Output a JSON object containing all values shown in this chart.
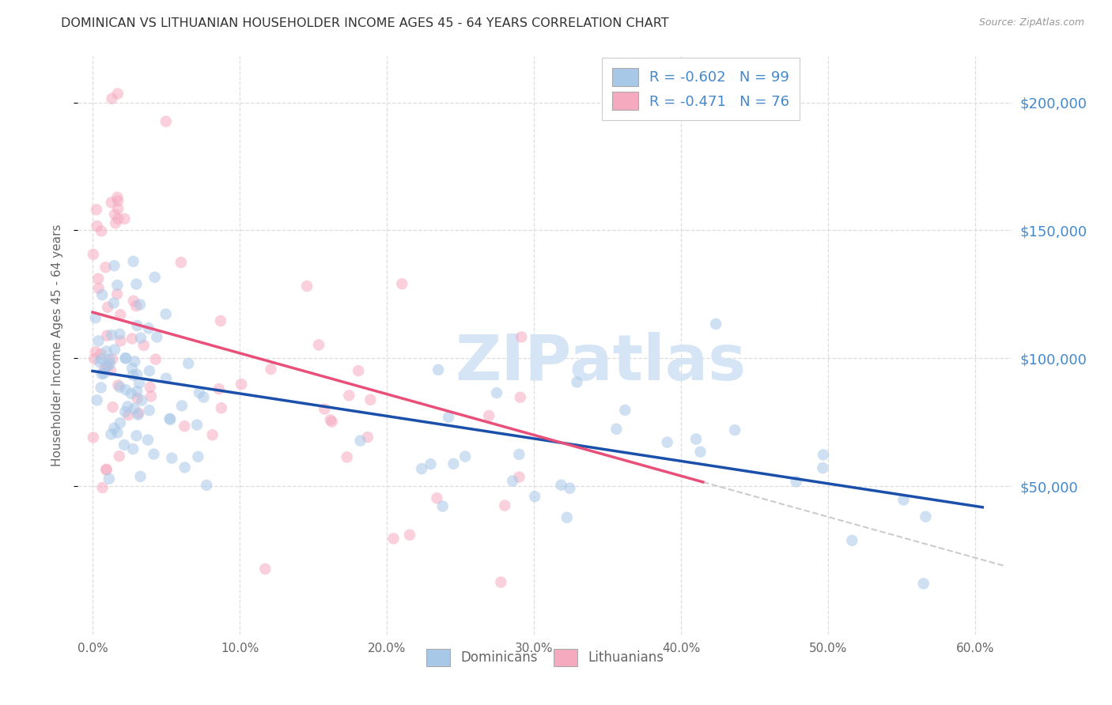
{
  "title": "DOMINICAN VS LITHUANIAN HOUSEHOLDER INCOME AGES 45 - 64 YEARS CORRELATION CHART",
  "source": "Source: ZipAtlas.com",
  "xlabel_ticks": [
    "0.0%",
    "10.0%",
    "20.0%",
    "30.0%",
    "40.0%",
    "50.0%",
    "60.0%"
  ],
  "ylabel_label": "Householder Income Ages 45 - 64 years",
  "ylabel_ticks": [
    "$50,000",
    "$100,000",
    "$150,000",
    "$200,000"
  ],
  "ylabel_values": [
    50000,
    100000,
    150000,
    200000
  ],
  "xlim": [
    -0.01,
    0.625
  ],
  "ylim": [
    -8000,
    218000
  ],
  "dominican_color": "#a8c8e8",
  "dominican_line_color": "#1a4faa",
  "lithuanian_color": "#f5aac0",
  "lithuanian_line_color": "#e8507a",
  "watermark": "ZIPatlas",
  "watermark_color": "#d5e5f5",
  "R_dominican": -0.602,
  "N_dominican": 99,
  "R_lithuanian": -0.471,
  "N_lithuanian": 76,
  "background_color": "#ffffff",
  "grid_color": "#dddddd",
  "title_color": "#333333",
  "axis_label_color": "#666666",
  "right_ytick_color": "#4488cc",
  "legend_value_color": "#4488cc",
  "dot_size": 110,
  "dot_alpha": 0.55,
  "line_width": 2.5,
  "dashed_line_color": "#cccccc",
  "dom_intercept": 95000,
  "dom_slope": -88000,
  "lit_intercept": 118000,
  "lit_slope": -160000
}
